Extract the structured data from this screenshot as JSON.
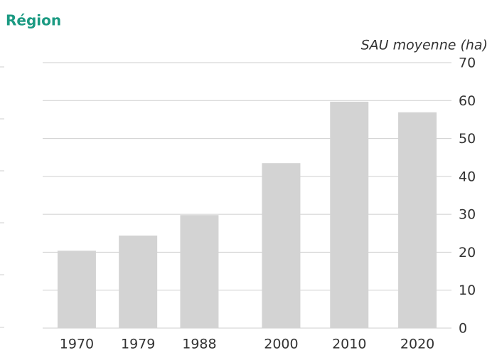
{
  "chart_data": {
    "type": "bar",
    "title": "Région",
    "y_axis_label": "SAU moyenne (ha)",
    "x": [
      1970,
      1979,
      1988,
      2000,
      2010,
      2020
    ],
    "values": [
      20.4,
      24.4,
      29.8,
      43.5,
      59.7,
      56.9
    ],
    "color": "#d3d3d3",
    "xlim": [
      1965,
      2025
    ],
    "ylim": [
      0,
      70
    ],
    "yticks": [
      0,
      10,
      20,
      30,
      40,
      50,
      60,
      70
    ],
    "grid": true,
    "y_axis_side": "right"
  }
}
